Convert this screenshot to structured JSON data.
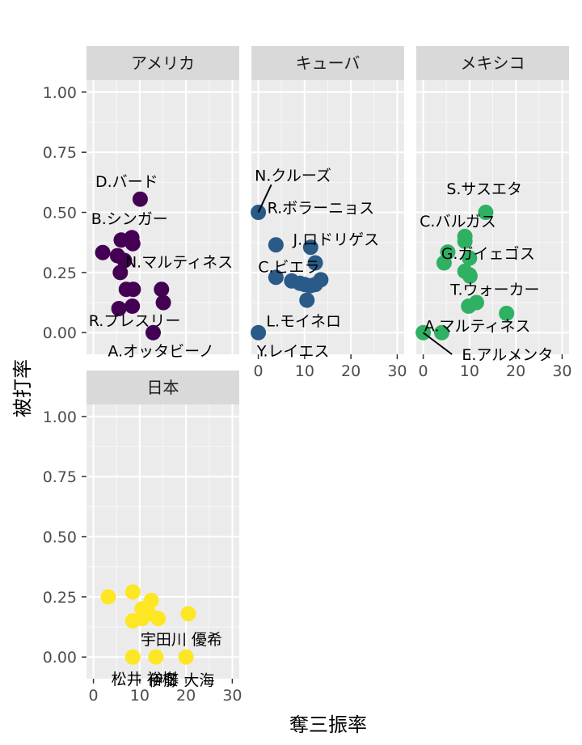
{
  "chart_data": {
    "type": "scatter",
    "xlabel": "奪三振率",
    "ylabel": "被打率",
    "xlim": [
      -1.5,
      31.5
    ],
    "ylim": [
      -0.09,
      1.05
    ],
    "xticks": [
      0,
      10,
      20,
      30
    ],
    "yticks": [
      1.0,
      0.75,
      0.5,
      0.25,
      0.0
    ],
    "ytick_labels": [
      "1.00",
      "0.75",
      "0.50",
      "0.25",
      "0.00"
    ],
    "grid": true,
    "legend": "none",
    "facets": [
      {
        "name": "アメリカ",
        "color": "#440154",
        "points": [
          {
            "x": 10.1,
            "y": 0.555
          },
          {
            "x": 2.0,
            "y": 0.333
          },
          {
            "x": 6.0,
            "y": 0.385
          },
          {
            "x": 8.3,
            "y": 0.395
          },
          {
            "x": 8.5,
            "y": 0.37
          },
          {
            "x": 5.2,
            "y": 0.32
          },
          {
            "x": 6.7,
            "y": 0.3
          },
          {
            "x": 5.8,
            "y": 0.25
          },
          {
            "x": 7.1,
            "y": 0.18
          },
          {
            "x": 8.6,
            "y": 0.18
          },
          {
            "x": 14.7,
            "y": 0.18
          },
          {
            "x": 15.1,
            "y": 0.125
          },
          {
            "x": 8.4,
            "y": 0.11
          },
          {
            "x": 5.5,
            "y": 0.1
          },
          {
            "x": 12.9,
            "y": 0.0
          }
        ],
        "labels": [
          {
            "text": "D.バード",
            "x": 7.2,
            "y": 0.63
          },
          {
            "text": "B.シンガー",
            "x": 7.8,
            "y": 0.475
          },
          {
            "text": "N.マルティネス",
            "x": 18.5,
            "y": 0.295
          },
          {
            "text": "R.プレスリー",
            "x": 8.9,
            "y": 0.052
          },
          {
            "text": "A.オッタビーノ",
            "x": 14.6,
            "y": -0.075
          }
        ]
      },
      {
        "name": "キューバ",
        "color": "#2a5a87",
        "points": [
          {
            "x": 0.0,
            "y": 0.5
          },
          {
            "x": 3.8,
            "y": 0.365
          },
          {
            "x": 11.3,
            "y": 0.355
          },
          {
            "x": 12.3,
            "y": 0.29
          },
          {
            "x": 3.8,
            "y": 0.23
          },
          {
            "x": 7.2,
            "y": 0.215
          },
          {
            "x": 9.0,
            "y": 0.205
          },
          {
            "x": 10.0,
            "y": 0.2
          },
          {
            "x": 11.2,
            "y": 0.195
          },
          {
            "x": 12.3,
            "y": 0.2
          },
          {
            "x": 13.5,
            "y": 0.22
          },
          {
            "x": 10.5,
            "y": 0.135
          },
          {
            "x": 0.0,
            "y": 0.0
          }
        ],
        "labels": [
          {
            "text": "N.クルーズ",
            "x": 7.5,
            "y": 0.655
          },
          {
            "text": "R.ボラーニョス",
            "x": 13.5,
            "y": 0.52
          },
          {
            "text": "J.ロドリゲス",
            "x": 16.8,
            "y": 0.39
          },
          {
            "text": "C.ビエラ",
            "x": 6.6,
            "y": 0.275
          },
          {
            "text": "L.モイネロ",
            "x": 9.8,
            "y": 0.05
          },
          {
            "text": "Y.レイエス",
            "x": 7.5,
            "y": -0.075
          }
        ]
      },
      {
        "name": "メキシコ",
        "color": "#2fb063",
        "points": [
          {
            "x": 13.5,
            "y": 0.5
          },
          {
            "x": 9.0,
            "y": 0.4
          },
          {
            "x": 9.0,
            "y": 0.38
          },
          {
            "x": 5.3,
            "y": 0.335
          },
          {
            "x": 10.0,
            "y": 0.31
          },
          {
            "x": 4.5,
            "y": 0.29
          },
          {
            "x": 9.0,
            "y": 0.255
          },
          {
            "x": 10.0,
            "y": 0.24
          },
          {
            "x": 10.1,
            "y": 0.235
          },
          {
            "x": 11.5,
            "y": 0.125
          },
          {
            "x": 9.8,
            "y": 0.11
          },
          {
            "x": 18.0,
            "y": 0.08
          },
          {
            "x": 4.0,
            "y": 0.0
          },
          {
            "x": 0.0,
            "y": 0.0
          }
        ],
        "labels": [
          {
            "text": "S.サスエタ",
            "x": 13.2,
            "y": 0.6
          },
          {
            "text": "C.バルガス",
            "x": 7.5,
            "y": 0.465
          },
          {
            "text": "G.ガイェゴス",
            "x": 14.0,
            "y": 0.33
          },
          {
            "text": "T.ウォーカー",
            "x": 15.5,
            "y": 0.18
          },
          {
            "text": "A.マルティネス",
            "x": 11.7,
            "y": 0.03
          },
          {
            "text": "E.アルメンタ",
            "x": 18.2,
            "y": -0.09
          }
        ]
      },
      {
        "name": "日本",
        "color": "#fde725",
        "points": [
          {
            "x": 3.2,
            "y": 0.25
          },
          {
            "x": 8.5,
            "y": 0.27
          },
          {
            "x": 10.5,
            "y": 0.2
          },
          {
            "x": 12.5,
            "y": 0.235
          },
          {
            "x": 12.0,
            "y": 0.18
          },
          {
            "x": 14.0,
            "y": 0.16
          },
          {
            "x": 8.5,
            "y": 0.15
          },
          {
            "x": 10.5,
            "y": 0.16
          },
          {
            "x": 20.5,
            "y": 0.18
          },
          {
            "x": 8.5,
            "y": 0.0
          },
          {
            "x": 13.5,
            "y": 0.0
          },
          {
            "x": 20.0,
            "y": 0.0
          }
        ],
        "labels": [
          {
            "text": "宇田川 優希",
            "x": 19.0,
            "y": 0.075
          },
          {
            "text": "松井 裕樹",
            "x": 11.0,
            "y": -0.09
          },
          {
            "text": "伊藤 大海",
            "x": 19.0,
            "y": -0.095
          }
        ]
      }
    ]
  }
}
